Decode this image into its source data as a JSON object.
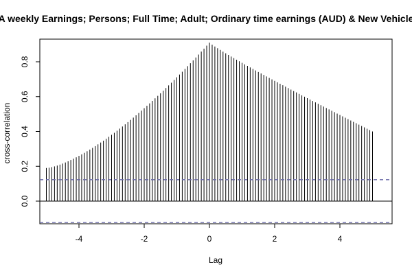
{
  "chart_data": {
    "type": "bar",
    "subtype": "cross-correlation",
    "title": "A weekly Earnings; Persons; Full Time; Adult; Ordinary time earnings (AUD) & New Vehicle",
    "xlabel": "Lag",
    "ylabel": "cross-correlation",
    "xlim": [
      -5.2,
      5.6
    ],
    "ylim": [
      -0.13,
      0.93
    ],
    "xticks": [
      -4,
      -2,
      0,
      2,
      4
    ],
    "yticks": [
      0.0,
      0.2,
      0.4,
      0.6,
      0.8
    ],
    "x_range": [
      -5,
      5
    ],
    "x_step": 0.083333,
    "peak": {
      "x": 0,
      "y": 0.91
    },
    "left_end": {
      "x": -5,
      "y": 0.19
    },
    "right_end": {
      "x": 5,
      "y": 0.4
    },
    "confidence_bound": 0.123,
    "confidence_line_color": "#6a6aa8",
    "grid": false,
    "legend": "none"
  }
}
